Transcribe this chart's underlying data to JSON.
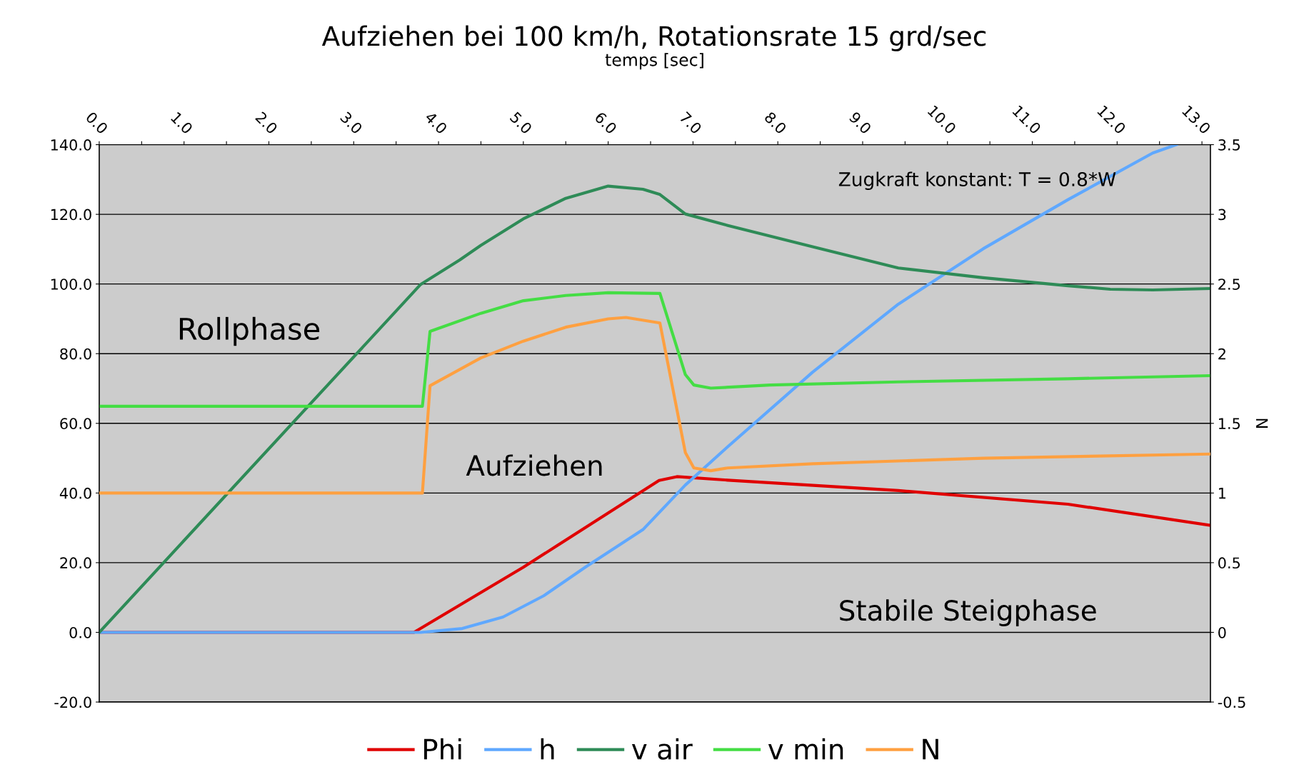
{
  "chart_data": {
    "type": "line",
    "title": "Aufziehen bei 100 km/h, Rotationsrate 15 grd/sec",
    "xlabel": "temps [sec]",
    "y2label": "N",
    "xlim": [
      0,
      13.1
    ],
    "xticks": [
      {
        "value": 0,
        "label": "0.0"
      },
      {
        "value": 0.5,
        "label": null
      },
      {
        "value": 1,
        "label": "1.0"
      },
      {
        "value": 1.5,
        "label": null
      },
      {
        "value": 2,
        "label": "2.0"
      },
      {
        "value": 2.5,
        "label": null
      },
      {
        "value": 3,
        "label": "3.0"
      },
      {
        "value": 3.5,
        "label": null
      },
      {
        "value": 4,
        "label": "4.0"
      },
      {
        "value": 4.5,
        "label": null
      },
      {
        "value": 5,
        "label": "5.0"
      },
      {
        "value": 5.5,
        "label": null
      },
      {
        "value": 6,
        "label": "6.0"
      },
      {
        "value": 6.5,
        "label": null
      },
      {
        "value": 7,
        "label": "7.0"
      },
      {
        "value": 7.5,
        "label": null
      },
      {
        "value": 8,
        "label": "8.0"
      },
      {
        "value": 8.5,
        "label": null
      },
      {
        "value": 9,
        "label": "9.0"
      },
      {
        "value": 9.5,
        "label": null
      },
      {
        "value": 10,
        "label": "10.0"
      },
      {
        "value": 10.5,
        "label": null
      },
      {
        "value": 11,
        "label": "11.0"
      },
      {
        "value": 11.5,
        "label": null
      },
      {
        "value": 12,
        "label": "12.0"
      },
      {
        "value": 12.5,
        "label": null
      },
      {
        "value": 13,
        "label": "13.0"
      }
    ],
    "ylim": [
      -20,
      140
    ],
    "yticks": [
      {
        "value": -20,
        "label": "-20.0"
      },
      {
        "value": 0,
        "label": "0.0"
      },
      {
        "value": 20,
        "label": "20.0"
      },
      {
        "value": 40,
        "label": "40.0"
      },
      {
        "value": 60,
        "label": "60.0"
      },
      {
        "value": 80,
        "label": "80.0"
      },
      {
        "value": 100,
        "label": "100.0"
      },
      {
        "value": 120,
        "label": "120.0"
      },
      {
        "value": 140,
        "label": "140.0"
      }
    ],
    "y2lim": [
      -0.5,
      3.5
    ],
    "y2ticks": [
      -0.5,
      0,
      0.5,
      1,
      1.5,
      2,
      2.5,
      3,
      3.5
    ],
    "grid": "y",
    "legend": "bottom",
    "marker": "none",
    "line_style": "solid",
    "annotations": [
      "Rollphase",
      "Aufziehen",
      "Stabile Steigphase",
      "Zugkraft konstant: T = 0.8*W"
    ],
    "series": [
      {
        "name": "Phi",
        "color": "#e00000",
        "x": [
          0,
          3.71,
          5.0,
          6.6,
          6.81,
          7.41,
          9.42,
          11.42,
          13.1
        ],
        "values": [
          0,
          0,
          18.7,
          43.6,
          44.7,
          43.7,
          40.7,
          36.8,
          30.7
        ]
      },
      {
        "name": "h",
        "color": "#5fa8ff",
        "x": [
          0,
          3.79,
          4.28,
          4.76,
          5.24,
          5.73,
          6.41,
          6.91,
          7.41,
          8.41,
          9.42,
          10.42,
          11.42,
          12.42,
          12.7
        ],
        "values": [
          0,
          0,
          1.1,
          4.4,
          10.5,
          18.7,
          29.5,
          42.3,
          53.3,
          74.7,
          94.2,
          110.1,
          124.2,
          137.6,
          140
        ]
      },
      {
        "name": "v air",
        "color": "#2e8b57",
        "x": [
          0,
          3.79,
          4.25,
          4.5,
          5.0,
          5.5,
          6.0,
          6.41,
          6.61,
          6.91,
          7.41,
          8.41,
          9.42,
          10.42,
          11.42,
          11.92,
          12.42,
          13.1
        ],
        "values": [
          0,
          99.9,
          106.9,
          111.1,
          118.7,
          124.6,
          128.1,
          127.2,
          125.7,
          120.1,
          116.8,
          110.7,
          104.6,
          101.8,
          99.5,
          98.5,
          98.3,
          98.7
        ]
      },
      {
        "name": "v min",
        "color": "#44dd44",
        "x": [
          0,
          3.81,
          3.9,
          4.5,
          5.0,
          5.5,
          6.0,
          6.61,
          6.91,
          7.01,
          7.21,
          7.91,
          9.42,
          11.42,
          13.1
        ],
        "values": [
          64.9,
          64.9,
          86.4,
          91.6,
          95.2,
          96.7,
          97.5,
          97.3,
          74.0,
          71.0,
          70.1,
          71.0,
          71.9,
          72.8,
          73.7
        ]
      },
      {
        "name": "N",
        "color": "#ffa040",
        "axis": "y2",
        "x": [
          0,
          3.81,
          3.9,
          4.5,
          5.0,
          5.5,
          6.0,
          6.21,
          6.61,
          6.91,
          7.01,
          7.21,
          7.41,
          8.41,
          10.42,
          13.1
        ],
        "values": [
          1.0,
          1.0,
          1.77,
          1.97,
          2.09,
          2.19,
          2.25,
          2.26,
          2.22,
          1.29,
          1.18,
          1.16,
          1.18,
          1.21,
          1.25,
          1.28
        ]
      }
    ]
  }
}
